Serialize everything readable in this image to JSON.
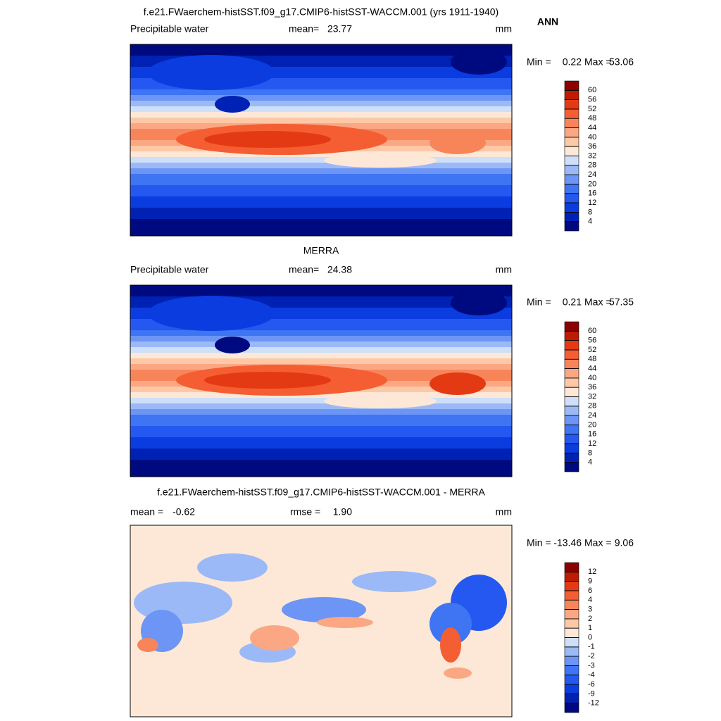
{
  "chart_data": [
    {
      "type": "contour",
      "title": "f.e21.FWaerchem-histSST.f09_g17.CMIP6-histSST-WACCM.001 (yrs 1911-1940)",
      "season": "ANN",
      "variable": "Precipitable water",
      "mean_label": "mean=",
      "mean": 23.77,
      "units": "mm",
      "min_label": "Min =",
      "min": 0.22,
      "max_label": "Max =",
      "max": 53.06,
      "levels": [
        4,
        8,
        12,
        16,
        20,
        24,
        28,
        32,
        36,
        40,
        44,
        48,
        52,
        56,
        60
      ],
      "colors": [
        "#000a80",
        "#0022b4",
        "#0a3ce0",
        "#2458f0",
        "#3f74f2",
        "#6c95f5",
        "#9cb9f7",
        "#cddff9",
        "#fde8d8",
        "#fcc8a6",
        "#fba783",
        "#f8855a",
        "#f45e32",
        "#e43a14",
        "#bd1c02",
        "#8c0000"
      ]
    },
    {
      "type": "contour",
      "title": "MERRA",
      "variable": "Precipitable water",
      "mean_label": "mean=",
      "mean": 24.38,
      "units": "mm",
      "min_label": "Min =",
      "min": 0.21,
      "max_label": "Max =",
      "max": 57.35,
      "levels": [
        4,
        8,
        12,
        16,
        20,
        24,
        28,
        32,
        36,
        40,
        44,
        48,
        52,
        56,
        60
      ],
      "colors": [
        "#000a80",
        "#0022b4",
        "#0a3ce0",
        "#2458f0",
        "#3f74f2",
        "#6c95f5",
        "#9cb9f7",
        "#cddff9",
        "#fde8d8",
        "#fcc8a6",
        "#fba783",
        "#f8855a",
        "#f45e32",
        "#e43a14",
        "#bd1c02",
        "#8c0000"
      ]
    },
    {
      "type": "contour-diff",
      "title": "f.e21.FWaerchem-histSST.f09_g17.CMIP6-histSST-WACCM.001 - MERRA",
      "mean_label": "mean =",
      "mean": -0.62,
      "rmse_label": "rmse =",
      "rmse": {
        "value": 1.9,
        "label": "1.90"
      },
      "units": "mm",
      "min_label": "Min =",
      "min": -13.46,
      "max_label": "Max =",
      "max": 9.06,
      "levels": [
        -12,
        -9,
        -6,
        -4,
        -3,
        -2,
        -1,
        0,
        1,
        2,
        3,
        4,
        6,
        9,
        12
      ],
      "colors": [
        "#000a80",
        "#0022b4",
        "#0a3ce0",
        "#2458f0",
        "#3f74f2",
        "#6c95f5",
        "#9cb9f7",
        "#cddff9",
        "#fde8d8",
        "#fcc8a6",
        "#fba783",
        "#f8855a",
        "#f45e32",
        "#e43a14",
        "#bd1c02",
        "#8c0000"
      ]
    }
  ]
}
